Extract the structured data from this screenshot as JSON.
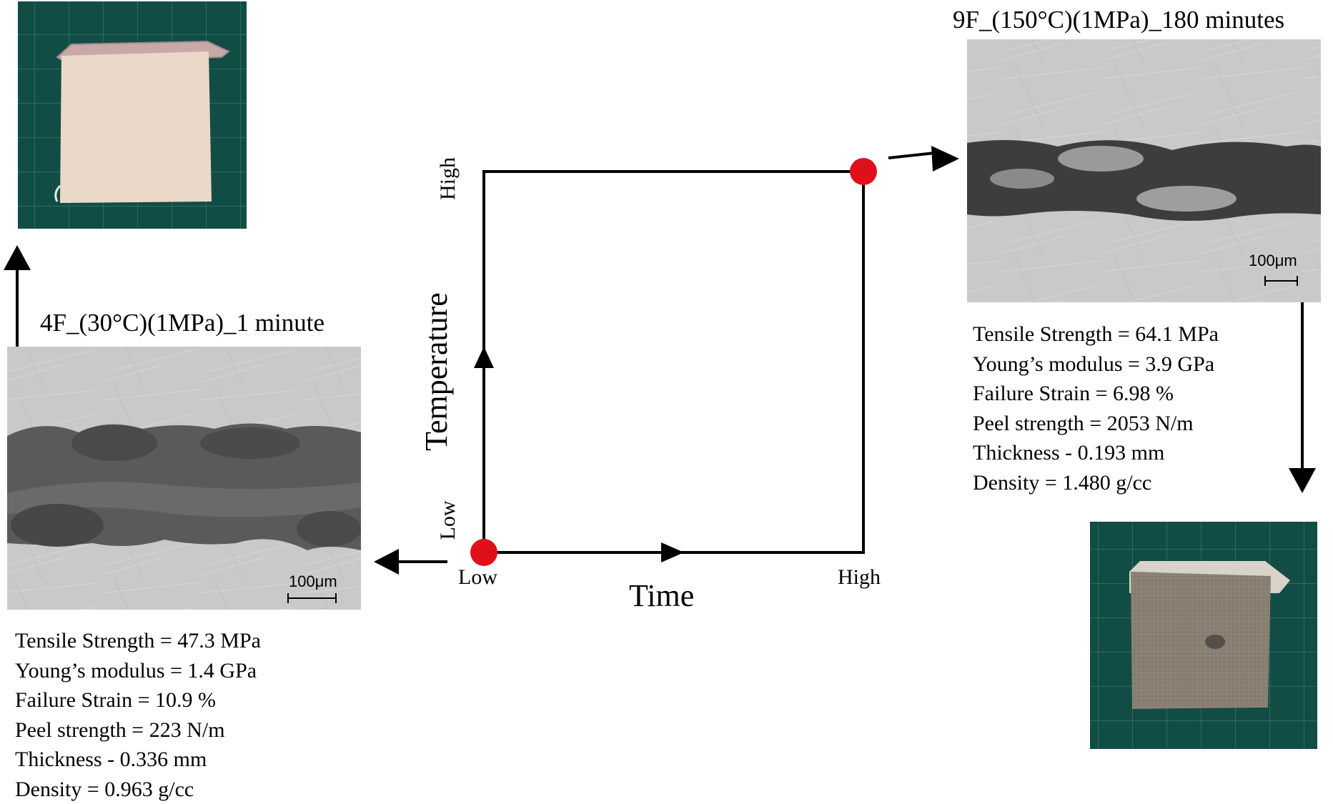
{
  "diagram": {
    "axes": {
      "x_label": "Time",
      "y_label": "Temperature",
      "x_low": "Low",
      "x_high": "High",
      "y_low": "Low",
      "y_high": "High"
    },
    "point_color": "#e0101b"
  },
  "samples": {
    "low": {
      "title": "4F_(30°C)(1MPa)_1 minute",
      "scale_bar": "100μm",
      "properties": [
        "Tensile Strength = 47.3 MPa",
        "Young’s modulus = 1.4 GPa",
        "Failure Strain = 10.9 %",
        "Peel strength = 223 N/m",
        "Thickness - 0.336 mm",
        "Density = 0.963 g/cc"
      ]
    },
    "high": {
      "title": "9F_(150°C)(1MPa)_180 minutes",
      "scale_bar": "100μm",
      "properties": [
        "Tensile Strength = 64.1 MPa",
        "Young’s modulus = 3.9 GPa",
        "Failure Strain = 6.98 %",
        "Peel strength = 2053 N/m",
        "Thickness - 0.193 mm",
        "Density = 1.480 g/cc"
      ]
    }
  }
}
